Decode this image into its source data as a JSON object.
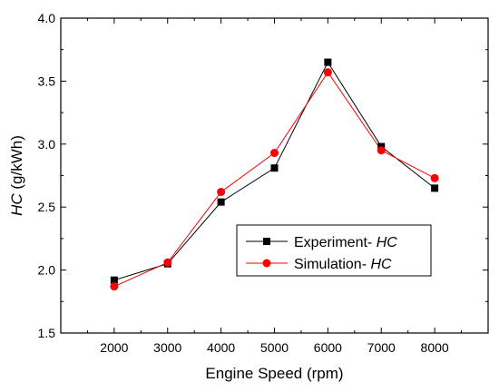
{
  "chart_data": {
    "type": "line",
    "xlabel": "Engine Speed (rpm)",
    "ylabel_var": "HC",
    "ylabel_unit": " (g/kWh)",
    "xlim": [
      1000,
      9000
    ],
    "ylim": [
      1.5,
      4.0
    ],
    "xticks": [
      2000,
      3000,
      4000,
      5000,
      6000,
      7000,
      8000
    ],
    "yticks": [
      1.5,
      2.0,
      2.5,
      3.0,
      3.5,
      4.0
    ],
    "ytick_labels": [
      "1.5",
      "2.0",
      "2.5",
      "3.0",
      "3.5",
      "4.0"
    ],
    "grid": false,
    "legend_position": "lower-right",
    "x": [
      2000,
      3000,
      4000,
      5000,
      6000,
      7000,
      8000
    ],
    "series": [
      {
        "name_prefix": "Experiment- ",
        "name_var": "HC",
        "values": [
          1.92,
          2.05,
          2.54,
          2.81,
          3.65,
          2.98,
          2.65
        ],
        "line_color": "#000000",
        "marker": "square",
        "marker_color": "#000000"
      },
      {
        "name_prefix": "Simulation- ",
        "name_var": "HC",
        "values": [
          1.87,
          2.06,
          2.62,
          2.93,
          3.57,
          2.95,
          2.73
        ],
        "line_color": "#ff0000",
        "marker": "circle",
        "marker_color": "#ff0000"
      }
    ]
  }
}
